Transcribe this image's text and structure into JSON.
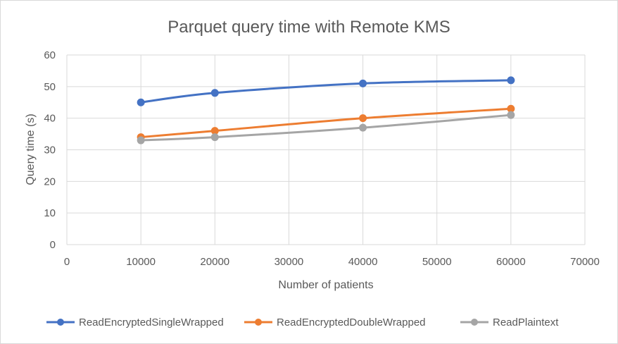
{
  "chart_data": {
    "type": "scatter",
    "title": "Parquet query time with Remote KMS",
    "xlabel": "Number of patients",
    "ylabel": "Query time (s)",
    "xlim": [
      0,
      70000
    ],
    "ylim": [
      0,
      60
    ],
    "xticks": [
      0,
      10000,
      20000,
      30000,
      40000,
      50000,
      60000,
      70000
    ],
    "yticks": [
      0,
      10,
      20,
      30,
      40,
      50,
      60
    ],
    "grid": true,
    "legend": "bottom",
    "x": [
      10000,
      20000,
      40000,
      60000
    ],
    "series": [
      {
        "name": "ReadEncryptedSingleWrapped",
        "color": "#4472c4",
        "values": [
          45,
          48,
          51,
          52
        ]
      },
      {
        "name": "ReadEncryptedDoubleWrapped",
        "color": "#ed7d31",
        "values": [
          34,
          36,
          40,
          43
        ]
      },
      {
        "name": "ReadPlaintext",
        "color": "#a5a5a5",
        "values": [
          33,
          34,
          37,
          41
        ]
      }
    ]
  }
}
